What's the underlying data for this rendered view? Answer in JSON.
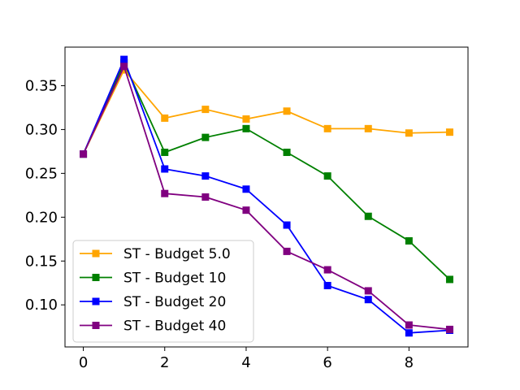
{
  "chart_data": {
    "type": "line",
    "title": "",
    "xlabel": "",
    "ylabel": "",
    "x": [
      0,
      1,
      2,
      3,
      4,
      5,
      6,
      7,
      8,
      9
    ],
    "xlim": [
      -0.45,
      9.45
    ],
    "ylim": [
      0.052,
      0.394
    ],
    "xticks": [
      0,
      2,
      4,
      6,
      8
    ],
    "yticks": [
      0.1,
      0.15,
      0.2,
      0.25,
      0.3,
      0.35
    ],
    "xtick_labels": [
      "0",
      "2",
      "4",
      "6",
      "8"
    ],
    "ytick_labels": [
      "0.10",
      "0.15",
      "0.20",
      "0.25",
      "0.30",
      "0.35"
    ],
    "grid": false,
    "legend_position": "lower-left",
    "series": [
      {
        "name": "ST - Budget 5.0",
        "color": "#FFA500",
        "marker": "square",
        "values": [
          0.272,
          0.368,
          0.313,
          0.323,
          0.312,
          0.321,
          0.301,
          0.301,
          0.296,
          0.297
        ]
      },
      {
        "name": "ST - Budget 10",
        "color": "#008000",
        "marker": "square",
        "values": [
          0.272,
          0.376,
          0.274,
          0.291,
          0.301,
          0.274,
          0.247,
          0.201,
          0.173,
          0.129
        ]
      },
      {
        "name": "ST - Budget 20",
        "color": "#0000FF",
        "marker": "square",
        "values": [
          0.272,
          0.38,
          0.255,
          0.247,
          0.232,
          0.191,
          0.122,
          0.106,
          0.068,
          0.071
        ]
      },
      {
        "name": "ST - Budget 40",
        "color": "#800080",
        "marker": "square",
        "values": [
          0.272,
          0.372,
          0.227,
          0.223,
          0.208,
          0.161,
          0.14,
          0.116,
          0.077,
          0.072
        ]
      }
    ]
  }
}
